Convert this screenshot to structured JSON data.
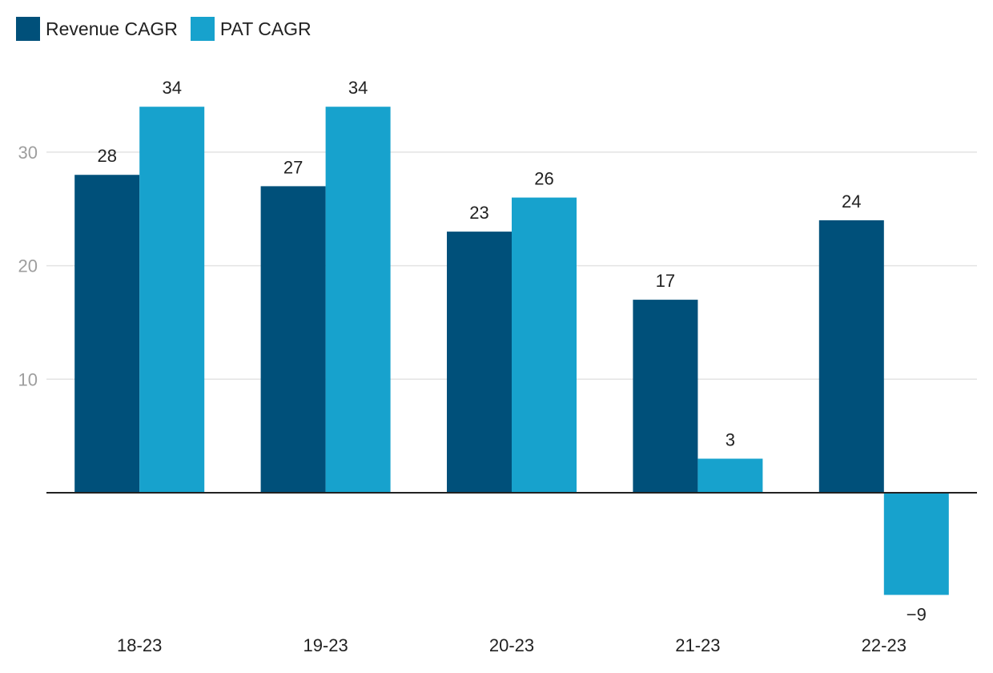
{
  "legend": [
    {
      "label": "Revenue CAGR",
      "color": "#00507a"
    },
    {
      "label": "PAT CAGR",
      "color": "#17a2cd"
    }
  ],
  "chart_data": {
    "type": "bar",
    "categories": [
      "18-23",
      "19-23",
      "20-23",
      "21-23",
      "22-23"
    ],
    "series": [
      {
        "name": "Revenue CAGR",
        "values": [
          28,
          27,
          23,
          17,
          24
        ],
        "color": "#00507a"
      },
      {
        "name": "PAT CAGR",
        "values": [
          34,
          34,
          26,
          3,
          -9
        ],
        "color": "#17a2cd"
      }
    ],
    "value_labels": [
      [
        "28",
        "27",
        "23",
        "17",
        "24"
      ],
      [
        "34",
        "34",
        "26",
        "3",
        "−9"
      ]
    ],
    "yticks": [
      10,
      20,
      30
    ],
    "ytick_labels": [
      "10",
      "20",
      "30"
    ],
    "ylim": [
      -11,
      36
    ],
    "grid": true,
    "legend_position": "top-left"
  }
}
